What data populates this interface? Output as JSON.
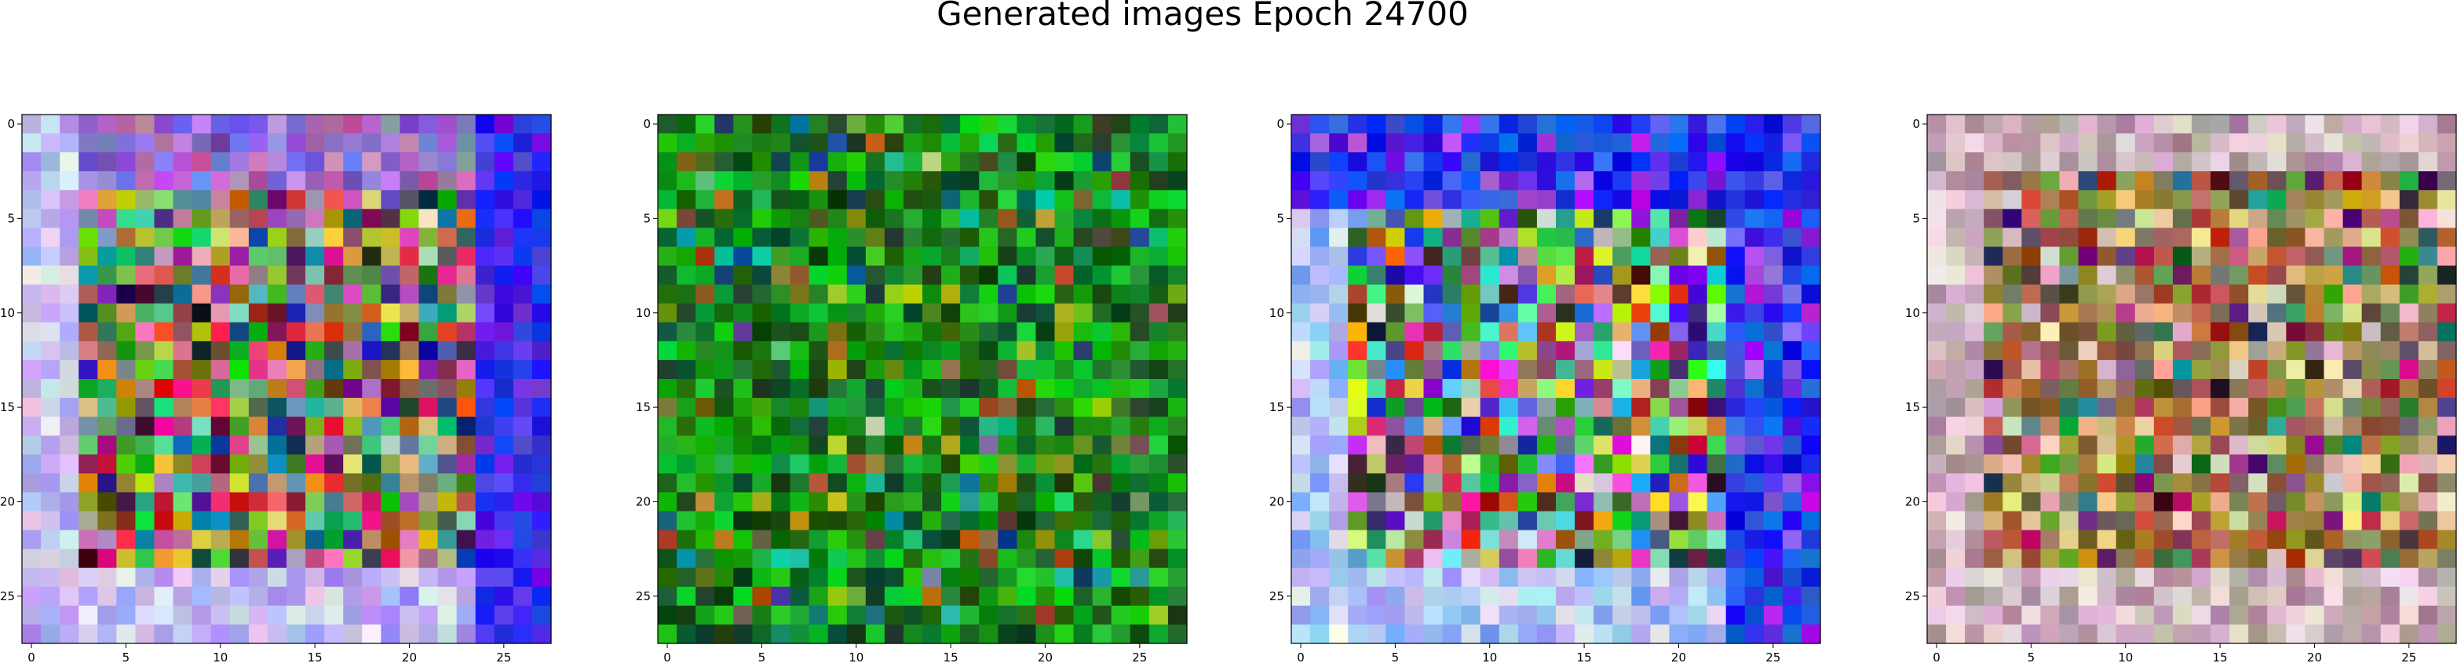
{
  "figure": {
    "title": "Generated images Epoch 24700",
    "background": "#ffffff"
  },
  "chart_data": [
    {
      "type": "heatmap",
      "palette": "multicolor-noise",
      "grid": false,
      "xlim": [
        -0.5,
        27.5
      ],
      "ylim": [
        27.5,
        -0.5
      ],
      "xticks": [
        0,
        5,
        10,
        15,
        20,
        25
      ],
      "yticks": [
        0,
        5,
        10,
        15,
        20,
        25
      ],
      "xtick_labels": [
        "0",
        "5",
        "10",
        "15",
        "20",
        "25"
      ],
      "ytick_labels": [
        "0",
        "5",
        "10",
        "15",
        "20",
        "25"
      ],
      "seed": 11
    },
    {
      "type": "heatmap",
      "palette": "green-noise",
      "grid": false,
      "xlim": [
        -0.5,
        27.5
      ],
      "ylim": [
        27.5,
        -0.5
      ],
      "xticks": [
        0,
        5,
        10,
        15,
        20,
        25
      ],
      "yticks": [
        0,
        5,
        10,
        15,
        20,
        25
      ],
      "xtick_labels": [
        "0",
        "5",
        "10",
        "15",
        "20",
        "25"
      ],
      "ytick_labels": [
        "0",
        "5",
        "10",
        "15",
        "20",
        "25"
      ],
      "seed": 29
    },
    {
      "type": "heatmap",
      "palette": "blue-edged-noise",
      "grid": false,
      "xlim": [
        -0.5,
        27.5
      ],
      "ylim": [
        27.5,
        -0.5
      ],
      "xticks": [
        0,
        5,
        10,
        15,
        20,
        25
      ],
      "yticks": [
        0,
        5,
        10,
        15,
        20,
        25
      ],
      "xtick_labels": [
        "0",
        "5",
        "10",
        "15",
        "20",
        "25"
      ],
      "ytick_labels": [
        "0",
        "5",
        "10",
        "15",
        "20",
        "25"
      ],
      "seed": 47
    },
    {
      "type": "heatmap",
      "palette": "earthy-pastel-noise",
      "grid": false,
      "xlim": [
        -0.5,
        27.5
      ],
      "ylim": [
        27.5,
        -0.5
      ],
      "xticks": [
        0,
        5,
        10,
        15,
        20,
        25
      ],
      "yticks": [
        0,
        5,
        10,
        15,
        20,
        25
      ],
      "xtick_labels": [
        "0",
        "5",
        "10",
        "15",
        "20",
        "25"
      ],
      "ytick_labels": [
        "0",
        "5",
        "10",
        "15",
        "20",
        "25"
      ],
      "seed": 83
    }
  ]
}
